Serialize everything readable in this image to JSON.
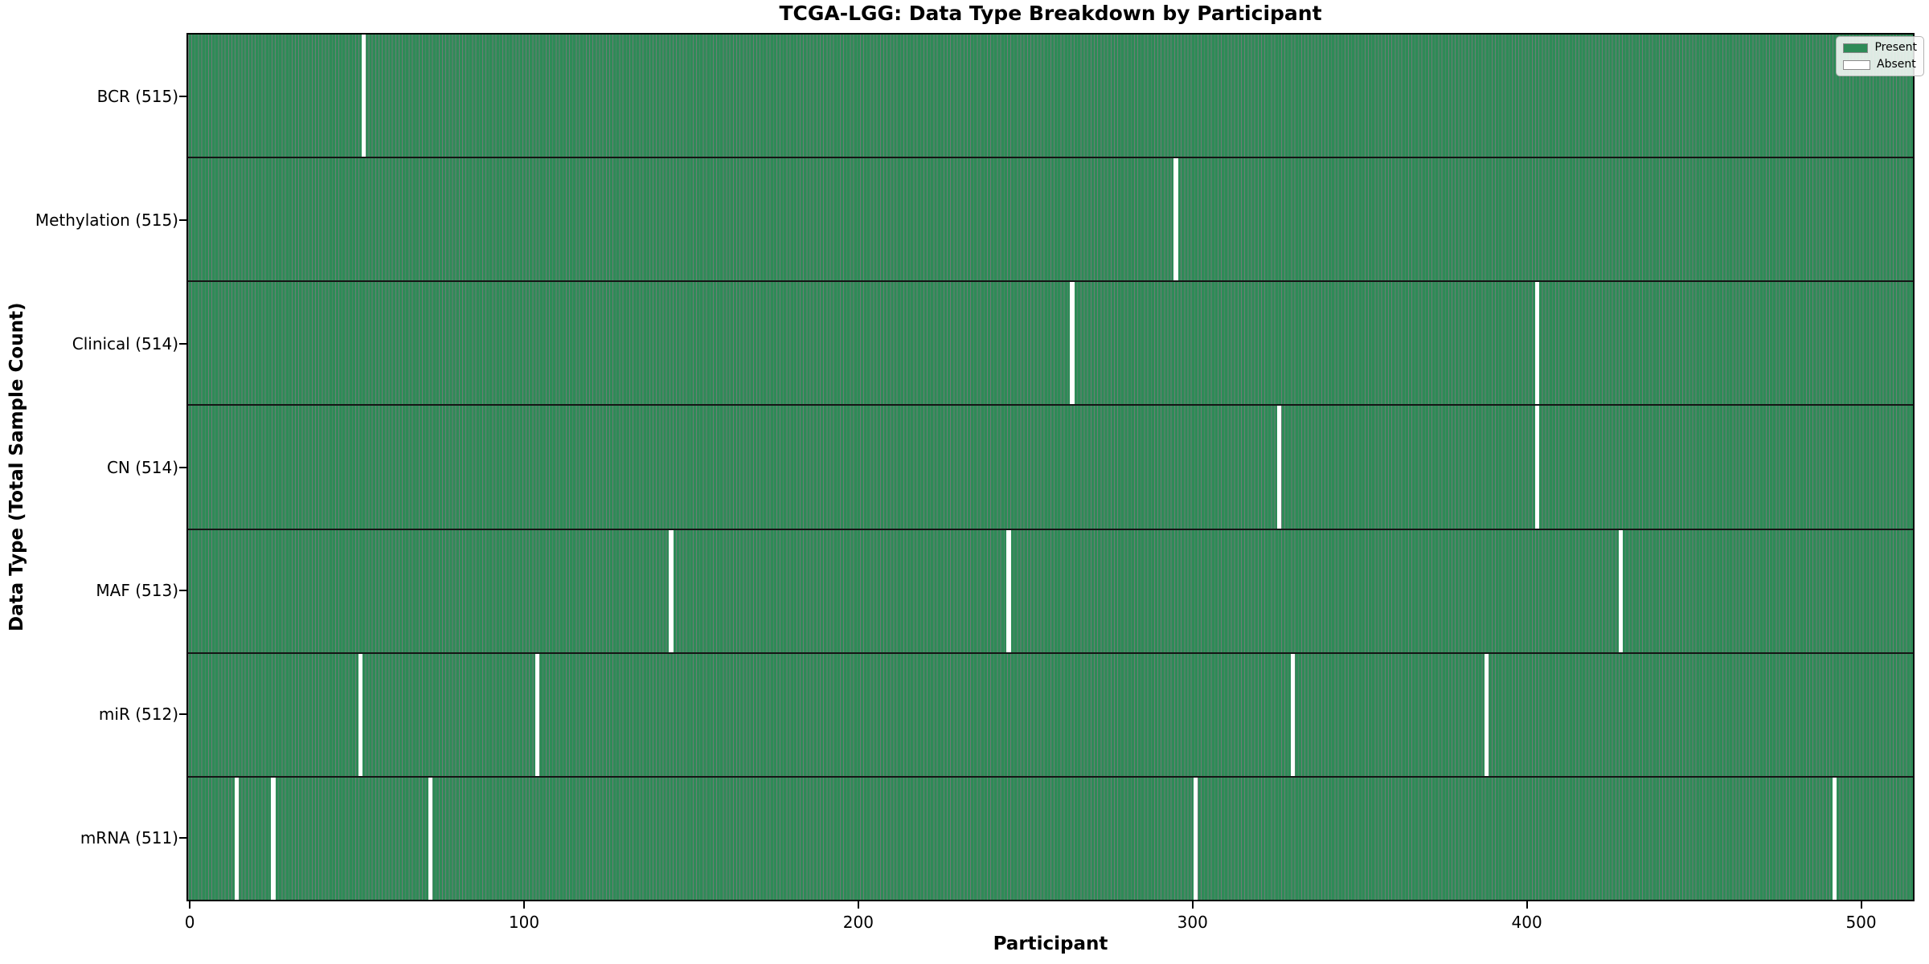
{
  "title": "TCGA-LGG: Data Type Breakdown by Participant",
  "axes": {
    "x_label": "Participant",
    "y_label": "Data Type (Total Sample Count)"
  },
  "legend": {
    "present_label": "Present",
    "absent_label": "Absent"
  },
  "colors": {
    "present_fill": "#2e8b57",
    "bar_edge": "rgba(10,40,26,0.6)",
    "absent_fill": "#ffffff",
    "row_separator": "#151515",
    "plot_border": "#000000"
  },
  "chart_data": {
    "type": "heatmap",
    "title": "TCGA-LGG: Data Type Breakdown by Participant",
    "xlabel": "Participant",
    "ylabel": "Data Type (Total Sample Count)",
    "n_participants": 516,
    "x_ticks": [
      0,
      100,
      200,
      300,
      400,
      500
    ],
    "xlim": [
      0,
      516
    ],
    "grid": false,
    "legend_position": "upper right",
    "legend": [
      {
        "label": "Present",
        "color": "#2e8b57"
      },
      {
        "label": "Absent",
        "color": "#ffffff"
      }
    ],
    "rows": [
      {
        "label": "BCR (515)",
        "data_type": "BCR",
        "present_count": 515,
        "absent_participants": [
          52
        ]
      },
      {
        "label": "Methylation (515)",
        "data_type": "Methylation",
        "present_count": 515,
        "absent_participants": [
          295
        ]
      },
      {
        "label": "Clinical (514)",
        "data_type": "Clinical",
        "present_count": 514,
        "absent_participants": [
          264,
          403
        ]
      },
      {
        "label": "CN (514)",
        "data_type": "CN",
        "present_count": 514,
        "absent_participants": [
          326,
          403
        ]
      },
      {
        "label": "MAF (513)",
        "data_type": "MAF",
        "present_count": 513,
        "absent_participants": [
          144,
          245,
          428
        ]
      },
      {
        "label": "miR (512)",
        "data_type": "miR",
        "present_count": 512,
        "absent_participants": [
          51,
          104,
          330,
          388
        ]
      },
      {
        "label": "mRNA (511)",
        "data_type": "mRNA",
        "present_count": 511,
        "absent_participants": [
          14,
          25,
          72,
          301,
          492
        ]
      }
    ]
  }
}
